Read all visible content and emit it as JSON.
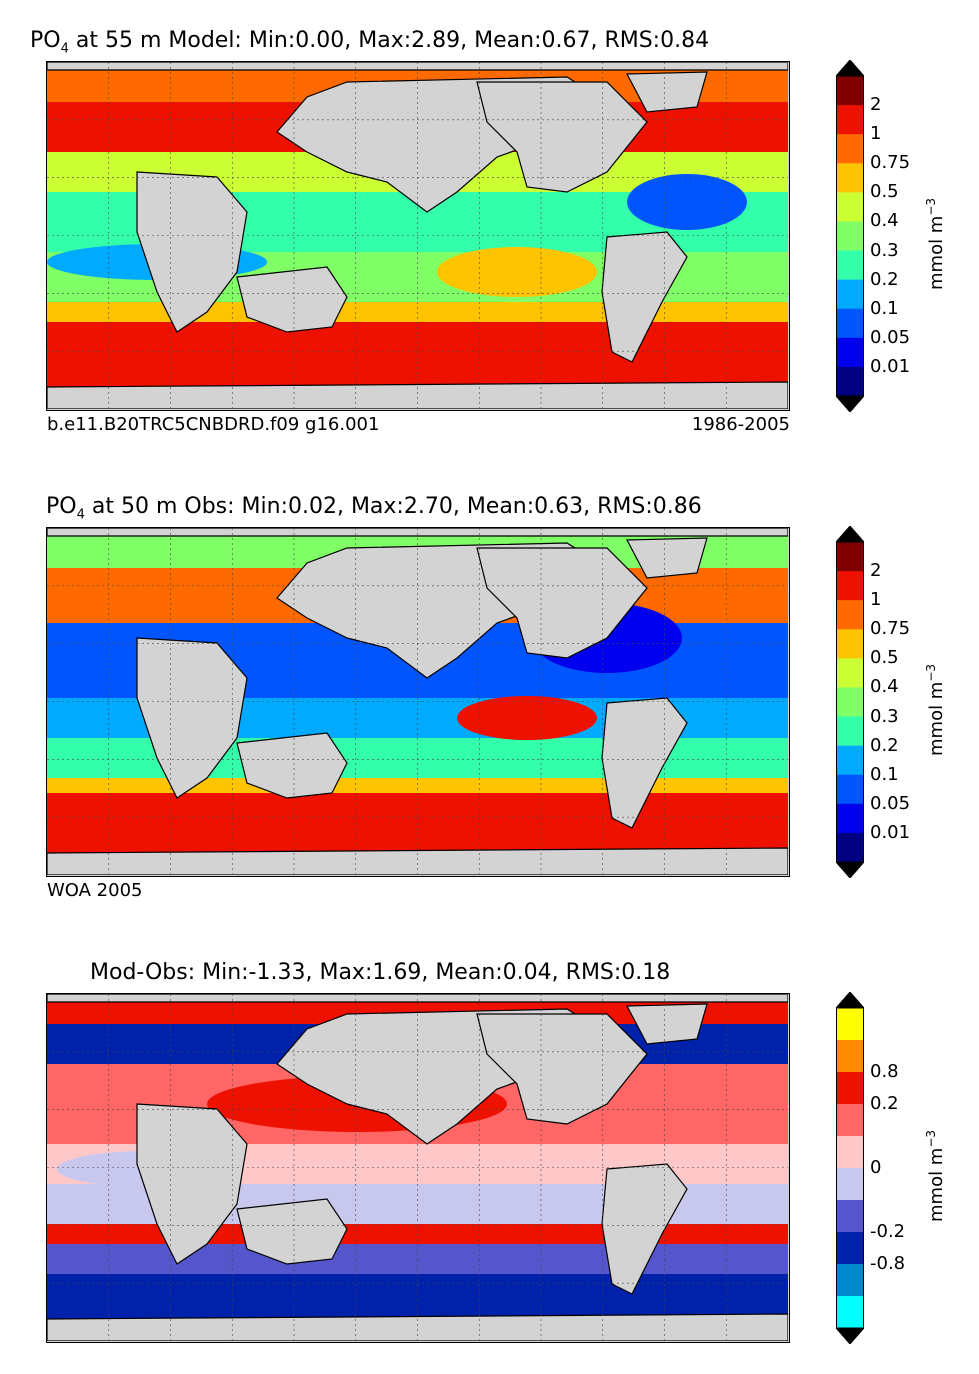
{
  "chart_data": [
    {
      "type": "heatmap",
      "variable": "PO",
      "subscript": "4",
      "title_rest": " at 55 m Model: Min:0.00, Max:2.89, Mean:0.67, RMS:0.84",
      "stats": {
        "min": 0.0,
        "max": 2.89,
        "mean": 0.67,
        "rms": 0.84
      },
      "depth_m": 55,
      "left_note": "b.e11.B20TRC5CNBDRD.f09 g16.001",
      "right_note": "1986-2005",
      "colorbar": {
        "unit": "mmol m",
        "unit_sup": "−3",
        "levels": [
          "2",
          "1",
          "0.75",
          "0.5",
          "0.4",
          "0.3",
          "0.2",
          "0.1",
          "0.05",
          "0.01"
        ],
        "colors": [
          "#7f0000",
          "#ee1100",
          "#ff6a00",
          "#ffc400",
          "#ccff33",
          "#80ff66",
          "#33ffaa",
          "#00aaff",
          "#0055ff",
          "#0000ee",
          "#000080"
        ]
      }
    },
    {
      "type": "heatmap",
      "variable": "PO",
      "subscript": "4",
      "title_rest": " at 50 m Obs: Min:0.02, Max:2.70, Mean:0.63, RMS:0.86",
      "stats": {
        "min": 0.02,
        "max": 2.7,
        "mean": 0.63,
        "rms": 0.86
      },
      "depth_m": 50,
      "left_note": "WOA 2005",
      "colorbar": {
        "unit": "mmol m",
        "unit_sup": "−3",
        "levels": [
          "2",
          "1",
          "0.75",
          "0.5",
          "0.4",
          "0.3",
          "0.2",
          "0.1",
          "0.05",
          "0.01"
        ],
        "colors": [
          "#7f0000",
          "#ee1100",
          "#ff6a00",
          "#ffc400",
          "#ccff33",
          "#80ff66",
          "#33ffaa",
          "#00aaff",
          "#0055ff",
          "#0000ee",
          "#000080"
        ]
      }
    },
    {
      "type": "heatmap",
      "title": "Mod-Obs: Min:-1.33, Max:1.69, Mean:0.04, RMS:0.18",
      "stats": {
        "min": -1.33,
        "max": 1.69,
        "mean": 0.04,
        "rms": 0.18
      },
      "colorbar": {
        "unit": "mmol m",
        "unit_sup": "−3",
        "levels": [
          "0.8",
          "0.2",
          "0",
          "-0.2",
          "-0.8"
        ],
        "colors": [
          "#ffff00",
          "#ff8c00",
          "#ee1100",
          "#ff6666",
          "#ffc8c8",
          "#c8c8ee",
          "#5555cc",
          "#0022aa",
          "#0088cc",
          "#00ffff"
        ]
      }
    }
  ]
}
